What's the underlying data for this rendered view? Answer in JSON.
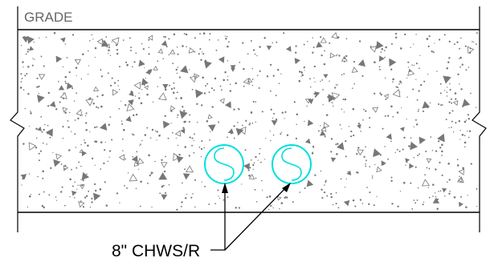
{
  "drawing": {
    "grade_label": "GRADE",
    "pipe_label": "8\" CHWS/R",
    "pipes": [
      {
        "name": "pipe-chws",
        "symbol": "chilled-water-supply-symbol"
      },
      {
        "name": "pipe-chwr",
        "symbol": "chilled-water-return-symbol"
      }
    ],
    "colors": {
      "line": "#000000",
      "pipe": "#00dede",
      "concrete": "#777777",
      "background": "#ffffff"
    }
  }
}
